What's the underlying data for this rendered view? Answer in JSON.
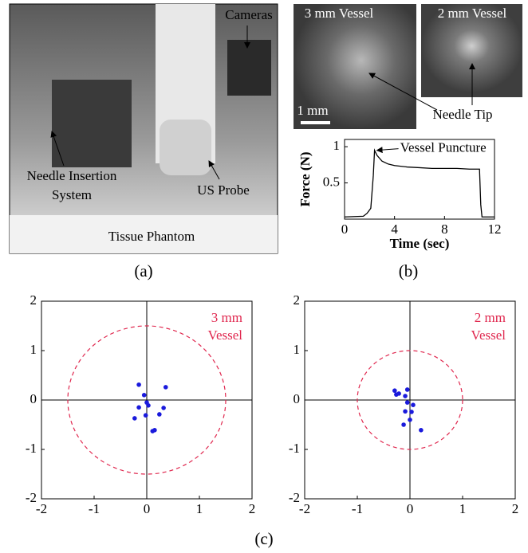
{
  "figure": {
    "photo_labels": {
      "cameras": "Cameras",
      "needle_system": [
        "Needle Insertion",
        "System"
      ],
      "us_probe": "US Probe",
      "tissue_phantom": "Tissue Phantom"
    },
    "ultrasound_labels": {
      "vessel_3mm": "3 mm Vessel",
      "vessel_2mm": "2 mm Vessel",
      "needle_tip": "Needle Tip",
      "scale": "1 mm"
    },
    "panel_labels": [
      "(a)",
      "(b)",
      "(c)"
    ]
  },
  "chart_data": [
    {
      "type": "line",
      "xlabel": "Time (sec)",
      "ylabel": "Force (N)",
      "annotation": "Vessel Puncture",
      "x": [
        0,
        1.5,
        1.8,
        2.1,
        2.3,
        2.4,
        2.6,
        3,
        3.5,
        4,
        5,
        6,
        7,
        8,
        9,
        10,
        10.8,
        10.9,
        11,
        12
      ],
      "values": [
        0.03,
        0.04,
        0.08,
        0.15,
        0.6,
        0.95,
        0.88,
        0.8,
        0.76,
        0.74,
        0.72,
        0.71,
        0.7,
        0.7,
        0.7,
        0.69,
        0.69,
        0.2,
        0.03,
        0.03
      ],
      "color": "#000000",
      "xlim": [
        0,
        12
      ],
      "ylim": [
        0,
        1.1
      ],
      "xticks": [
        0,
        4,
        8,
        12
      ],
      "yticks": [
        0.5,
        1
      ]
    },
    {
      "type": "scatter",
      "annotation": [
        "3 mm",
        "Vessel"
      ],
      "annotation_color": "#e0284f",
      "x": [
        -0.15,
        -0.05,
        0.36,
        0,
        0.03,
        -0.15,
        0.32,
        0.24,
        -0.23,
        -0.02,
        0.11,
        0.15
      ],
      "values": [
        0.31,
        0.1,
        0.26,
        -0.05,
        -0.11,
        -0.15,
        -0.16,
        -0.29,
        -0.37,
        -0.31,
        -0.63,
        -0.61
      ],
      "color": "#1a1adc",
      "circle_radius": 1.5,
      "circle_color": "#e0284f",
      "xlim": [
        -2,
        2
      ],
      "ylim": [
        -2,
        2
      ],
      "xticks": [
        -2,
        -1,
        0,
        1,
        2
      ],
      "yticks": [
        -2,
        -1,
        0,
        1,
        2
      ]
    },
    {
      "type": "scatter",
      "annotation": [
        "2 mm",
        "Vessel"
      ],
      "annotation_color": "#e0284f",
      "x": [
        -0.29,
        -0.21,
        -0.26,
        -0.05,
        -0.09,
        -0.05,
        0.06,
        -0.09,
        0.03,
        0,
        -0.12,
        0.21
      ],
      "values": [
        0.19,
        0.13,
        0.11,
        0.21,
        0.08,
        -0.05,
        -0.1,
        -0.23,
        -0.24,
        -0.4,
        -0.5,
        -0.61
      ],
      "color": "#1a1adc",
      "circle_radius": 1,
      "circle_color": "#e0284f",
      "xlim": [
        -2,
        2
      ],
      "ylim": [
        -2,
        2
      ],
      "xticks": [
        -2,
        -1,
        0,
        1,
        2
      ],
      "yticks": [
        -2,
        -1,
        0,
        1,
        2
      ]
    }
  ]
}
